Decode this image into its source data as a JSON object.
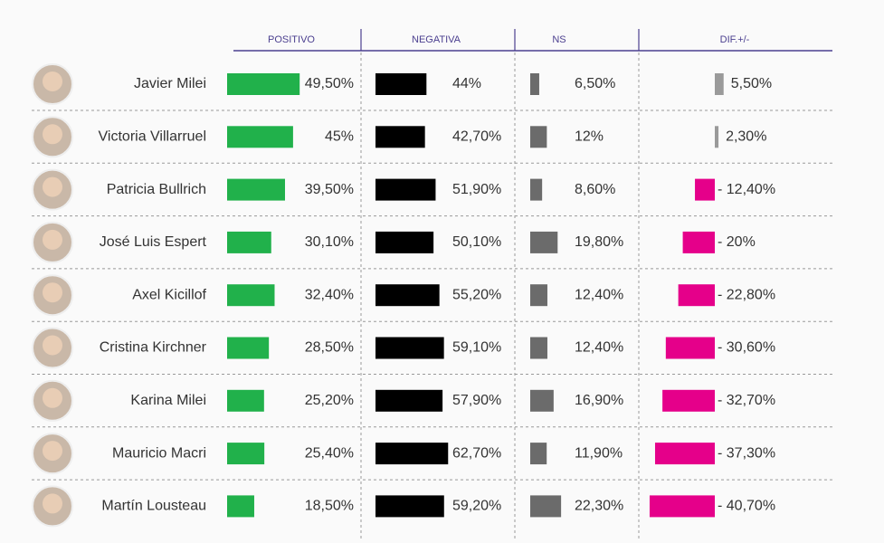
{
  "chart_data": {
    "type": "bar",
    "categories": [
      "Javier Milei",
      "Victoria Villarruel",
      "Patricia Bullrich",
      "José Luis Espert",
      "Axel Kicillof",
      "Cristina Kirchner",
      "Karina Milei",
      "Mauricio Macri",
      "Martín Lousteau"
    ],
    "series": [
      {
        "name": "POSITIVO",
        "color": "#21b14b",
        "values": [
          49.5,
          45,
          39.5,
          30.1,
          32.4,
          28.5,
          25.2,
          25.4,
          18.5
        ],
        "value_labels": [
          "49,50%",
          "45%",
          "39,50%",
          "30,10%",
          "32,40%",
          "28,50%",
          "25,20%",
          "25,40%",
          "18,50%"
        ]
      },
      {
        "name": "NEGATIVA",
        "color": "#000000",
        "values": [
          44,
          42.7,
          51.9,
          50.1,
          55.2,
          59.1,
          57.9,
          62.7,
          59.2
        ],
        "value_labels": [
          "44%",
          "42,70%",
          "51,90%",
          "50,10%",
          "55,20%",
          "59,10%",
          "57,90%",
          "62,70%",
          "59,20%"
        ]
      },
      {
        "name": "NS",
        "color": "#6b6b6b",
        "values": [
          6.5,
          12,
          8.6,
          19.8,
          12.4,
          12.4,
          16.9,
          11.9,
          22.3
        ],
        "value_labels": [
          "6,50%",
          "12%",
          "8,60%",
          "19,80%",
          "12,40%",
          "12,40%",
          "16,90%",
          "11,90%",
          "22,30%"
        ]
      },
      {
        "name": "DIF.+/-",
        "color": "#9a9a9a",
        "negative_color": "#e5008a",
        "values": [
          5.5,
          2.3,
          -12.4,
          -20,
          -22.8,
          -30.6,
          -32.7,
          -37.3,
          -40.7
        ],
        "value_labels": [
          "5,50%",
          "2,30%",
          "- 12,40%",
          "- 20%",
          "- 22,80%",
          "- 30,60%",
          "- 32,70%",
          "- 37,30%",
          "- 40,70%"
        ]
      }
    ]
  }
}
